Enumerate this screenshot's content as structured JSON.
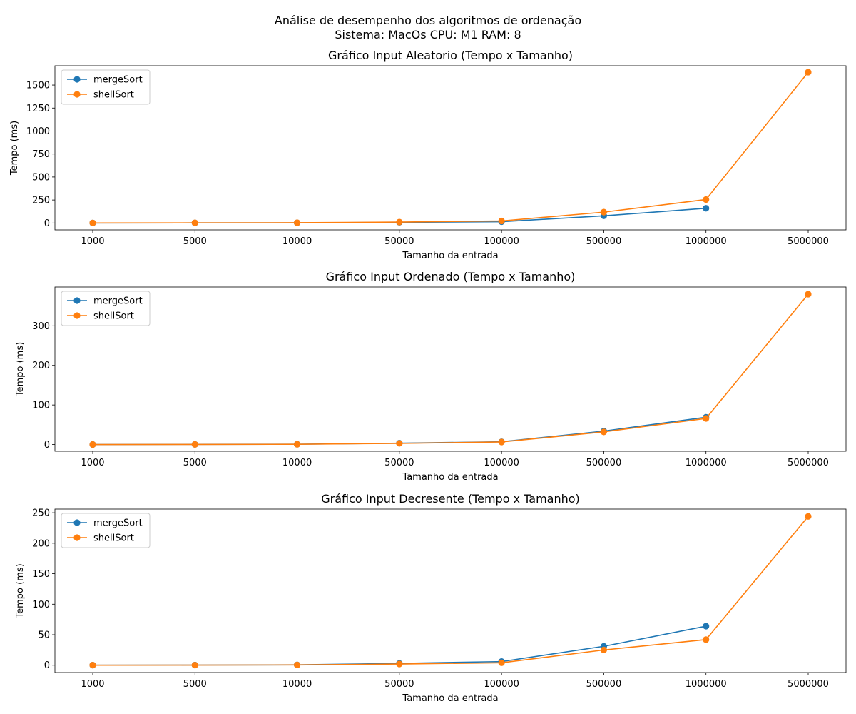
{
  "suptitle_line1": "Análise de desempenho dos algoritmos de ordenação",
  "suptitle_line2": "Sistema: MacOs CPU: M1 RAM: 8",
  "colors": {
    "mergeSort": "#1f77b4",
    "shellSort": "#ff7f0e"
  },
  "chart_data": [
    {
      "type": "line",
      "title": "Gráfico Input Aleatorio (Tempo x Tamanho)",
      "xlabel": "Tamanho da entrada",
      "ylabel": "Tempo (ms)",
      "categories": [
        "1000",
        "5000",
        "10000",
        "50000",
        "100000",
        "500000",
        "1000000",
        "5000000"
      ],
      "ylim": [
        -75,
        1710
      ],
      "yticks": [
        0,
        250,
        500,
        750,
        1000,
        1250,
        1500
      ],
      "legend_position": "upper-left",
      "series": [
        {
          "name": "mergeSort",
          "values": [
            0.2,
            0.8,
            1.5,
            7,
            14,
            78,
            160,
            null
          ]
        },
        {
          "name": "shellSort",
          "values": [
            0.3,
            1.5,
            3,
            10,
            22,
            118,
            255,
            1640
          ]
        }
      ]
    },
    {
      "type": "line",
      "title": "Gráfico Input Ordenado (Tempo x Tamanho)",
      "xlabel": "Tamanho da entrada",
      "ylabel": "Tempo (ms)",
      "categories": [
        "1000",
        "5000",
        "10000",
        "50000",
        "100000",
        "500000",
        "1000000",
        "5000000"
      ],
      "ylim": [
        -17,
        398
      ],
      "yticks": [
        0,
        100,
        200,
        300
      ],
      "legend_position": "upper-left",
      "series": [
        {
          "name": "mergeSort",
          "values": [
            0.1,
            0.4,
            0.8,
            3.5,
            7,
            34,
            69,
            null
          ]
        },
        {
          "name": "shellSort",
          "values": [
            0.1,
            0.3,
            0.7,
            3,
            6.5,
            32,
            66,
            380
          ]
        }
      ]
    },
    {
      "type": "line",
      "title": "Gráfico Input Decresente (Tempo x Tamanho)",
      "xlabel": "Tamanho da entrada",
      "ylabel": "Tempo (ms)",
      "categories": [
        "1000",
        "5000",
        "10000",
        "50000",
        "100000",
        "500000",
        "1000000",
        "5000000"
      ],
      "ylim": [
        -12,
        256
      ],
      "yticks": [
        0,
        50,
        100,
        150,
        200,
        250
      ],
      "legend_position": "upper-left",
      "series": [
        {
          "name": "mergeSort",
          "values": [
            0.1,
            0.3,
            0.6,
            3,
            6,
            31,
            64,
            null
          ]
        },
        {
          "name": "shellSort",
          "values": [
            0.1,
            0.2,
            0.5,
            2,
            4,
            25,
            42,
            244
          ]
        }
      ]
    }
  ]
}
